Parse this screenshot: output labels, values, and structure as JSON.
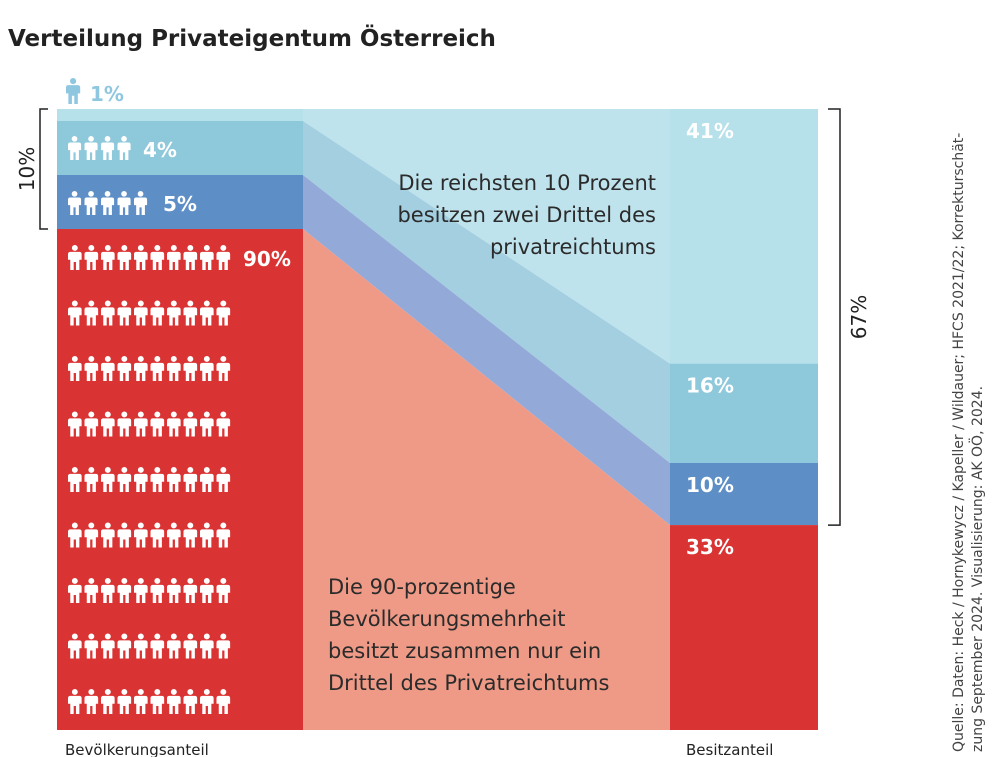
{
  "colors": {
    "top1": "#b6e0ea",
    "next4": "#8ec8db",
    "next5": "#5d8fc6",
    "bottom90": "#d93333",
    "flow_top1": "#bfe3ed",
    "flow_next4": "#a3cfe1",
    "flow_next5": "#93a9d8",
    "flow_bottom90": "#ee9a86",
    "person_top1": "#8fc7e0"
  },
  "chart_data": {
    "type": "stacked-flow",
    "title": "Verteilung Privateigentum Österreich",
    "xlabel_left": "Bevölkerungsanteil",
    "xlabel_right": "Besitzanteil",
    "groups": [
      {
        "name": "Top 1%",
        "population": 1,
        "population_label": "1%",
        "wealth": 41,
        "wealth_label": "41%",
        "icon_rows": 1,
        "icons_per_row": 1
      },
      {
        "name": "Next 4%",
        "population": 4,
        "population_label": "4%",
        "wealth": 16,
        "wealth_label": "16%",
        "icon_rows": 1,
        "icons_per_row": 4
      },
      {
        "name": "Next 5%",
        "population": 5,
        "population_label": "5%",
        "wealth": 10,
        "wealth_label": "10%",
        "icon_rows": 1,
        "icons_per_row": 5
      },
      {
        "name": "Bottom 90%",
        "population": 90,
        "population_label": "90%",
        "wealth": 33,
        "wealth_label": "33%",
        "icon_rows": 9,
        "icons_per_row": 10
      }
    ],
    "bracket_left_label": "10%",
    "bracket_right_label": "67%",
    "annotation_top": [
      "Die reichsten 10 Prozent",
      "besitzen zwei Drittel des",
      "privatreichtums"
    ],
    "annotation_bottom": [
      "Die 90-prozentige",
      "Bevölkerungsmehrheit",
      "besitzt zusammen nur ein",
      "Drittel des Privatreichtums"
    ],
    "source": [
      "Quelle: Daten: Heck / Hornykewycz / Kapeller / Wildauer; HFCS 2021/22; Korrekturschät-",
      "zung September 2024. Visualisierung: AK OÖ, 2024."
    ]
  }
}
